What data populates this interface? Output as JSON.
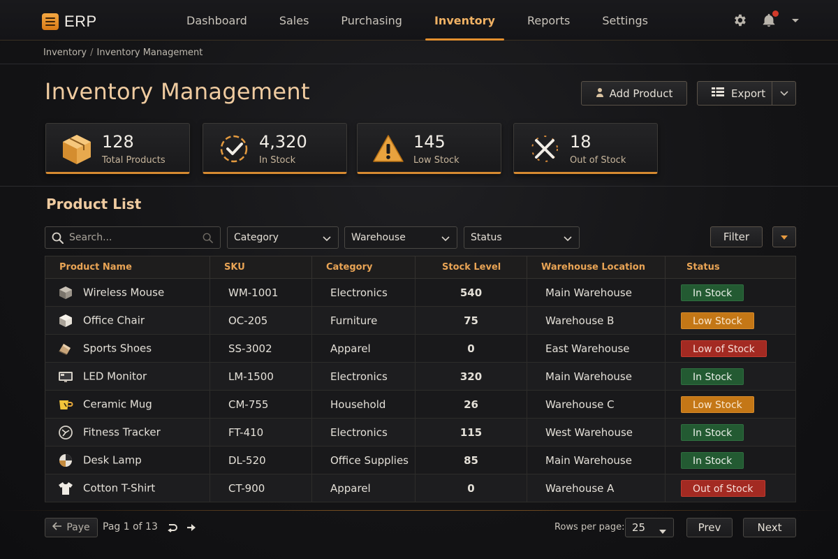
{
  "app": {
    "name": "ERP"
  },
  "nav": {
    "items": [
      {
        "label": "Dashboard"
      },
      {
        "label": "Sales"
      },
      {
        "label": "Purchasing"
      },
      {
        "label": "Inventory",
        "active": true
      },
      {
        "label": "Reports"
      },
      {
        "label": "Settings"
      }
    ]
  },
  "header_icons": {
    "settings": "gear-icon",
    "notifications": "bell-icon",
    "menu": "chevron-down-icon"
  },
  "breadcrumb": {
    "root": "Inventory",
    "separator": "/",
    "current": "Inventory Management"
  },
  "page": {
    "title": "Inventory Management"
  },
  "actions": {
    "add_product": "Add Product",
    "export": "Export"
  },
  "stats": [
    {
      "value": "128",
      "label": "Total Products",
      "icon": "box-icon"
    },
    {
      "value": "4,320",
      "label": "In Stock",
      "icon": "check-circle-icon"
    },
    {
      "value": "145",
      "label": "Low Stock",
      "icon": "warning-icon"
    },
    {
      "value": "18",
      "label": "Out of Stock",
      "icon": "x-icon"
    }
  ],
  "product_list": {
    "title": "Product List",
    "search": {
      "placeholder": "Search...",
      "value": ""
    },
    "filters": {
      "category": "Category",
      "warehouse": "Warehouse",
      "status": "Status",
      "filter_button": "Filter"
    },
    "columns": [
      "Product Name",
      "SKU",
      "Category",
      "Stock Level",
      "Warehouse Location",
      "Status"
    ],
    "rows": [
      {
        "name": "Wireless Mouse",
        "sku": "WM-1001",
        "category": "Electronics",
        "stock": "540",
        "location": "Main Warehouse",
        "status": "In Stock",
        "status_color": "green",
        "icon": "box-icon"
      },
      {
        "name": "Office Chair",
        "sku": "OC-205",
        "category": "Furniture",
        "stock": "75",
        "location": "Warehouse B",
        "status": "Low Stock",
        "status_color": "orange",
        "icon": "cube-icon"
      },
      {
        "name": "Sports Shoes",
        "sku": "SS-3002",
        "category": "Apparel",
        "stock": "0",
        "location": "East Warehouse",
        "status": "Low of Stock",
        "status_color": "red",
        "icon": "shoe-icon"
      },
      {
        "name": "LED Monitor",
        "sku": "LM-1500",
        "category": "Electronics",
        "stock": "320",
        "location": "Main Warehouse",
        "status": "In Stock",
        "status_color": "green",
        "icon": "monitor-icon"
      },
      {
        "name": "Ceramic Mug",
        "sku": "CM-755",
        "category": "Household",
        "stock": "26",
        "location": "Warehouse C",
        "status": "Low Stock",
        "status_color": "orange",
        "icon": "mug-icon"
      },
      {
        "name": "Fitness Tracker",
        "sku": "FT-410",
        "category": "Electronics",
        "stock": "115",
        "location": "West Warehouse",
        "status": "In Stock",
        "status_color": "green",
        "icon": "watch-icon"
      },
      {
        "name": "Desk Lamp",
        "sku": "DL-520",
        "category": "Office Supplies",
        "stock": "85",
        "location": "Main Warehouse",
        "status": "In Stock",
        "status_color": "green",
        "icon": "lamp-icon"
      },
      {
        "name": "Cotton T-Shirt",
        "sku": "CT-900",
        "category": "Apparel",
        "stock": "0",
        "location": "Warehouse A",
        "status": "Out of Stock",
        "status_color": "red",
        "icon": "tshirt-icon"
      }
    ]
  },
  "pagination": {
    "prev_page_label": "Paye",
    "page_text": "Pag 1 of 13",
    "rows_per_page_label": "Rows per page:",
    "rows_per_page": "25",
    "prev": "Prev",
    "next": "Next"
  },
  "colors": {
    "accent": "#e38f2e",
    "title": "#efcba0",
    "in_stock": "#235a32",
    "low_stock": "#c47716",
    "out_of_stock": "#a32a22"
  }
}
